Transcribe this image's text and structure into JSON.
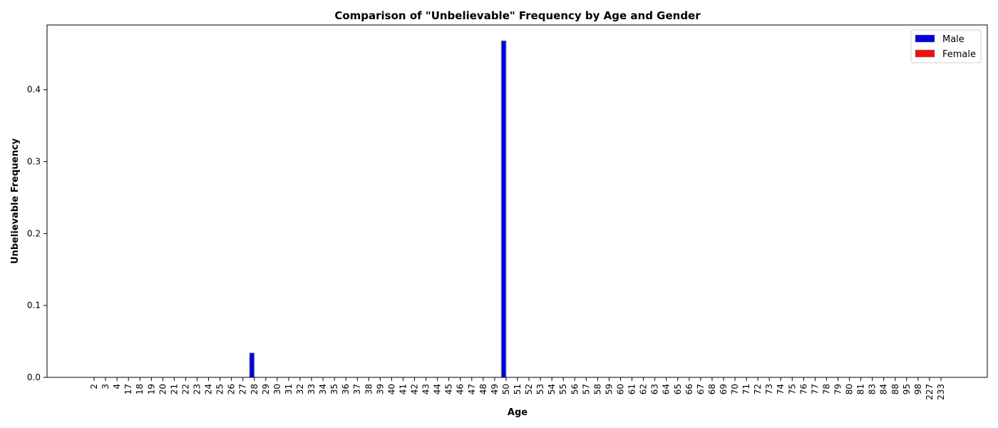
{
  "chart_data": {
    "type": "bar",
    "title": "Comparison of \"Unbelievable\" Frequency by Age and Gender",
    "xlabel": "Age",
    "ylabel": "Unbelievable Frequency",
    "ylim": [
      0,
      0.49
    ],
    "yticks": [
      "0.0",
      "0.1",
      "0.2",
      "0.3",
      "0.4"
    ],
    "grid": false,
    "legend_position": "top-right",
    "categories": [
      "2",
      "3",
      "4",
      "17",
      "18",
      "19",
      "20",
      "21",
      "22",
      "23",
      "24",
      "25",
      "26",
      "27",
      "28",
      "29",
      "30",
      "31",
      "32",
      "33",
      "34",
      "35",
      "36",
      "37",
      "38",
      "39",
      "40",
      "41",
      "42",
      "43",
      "44",
      "45",
      "46",
      "47",
      "48",
      "49",
      "50",
      "51",
      "52",
      "53",
      "54",
      "55",
      "56",
      "57",
      "58",
      "59",
      "60",
      "61",
      "62",
      "63",
      "64",
      "65",
      "66",
      "67",
      "68",
      "69",
      "70",
      "71",
      "72",
      "73",
      "74",
      "75",
      "76",
      "77",
      "78",
      "79",
      "80",
      "81",
      "83",
      "84",
      "88",
      "95",
      "98",
      "227",
      "233"
    ],
    "series": [
      {
        "name": "Male",
        "color": "#0000dd",
        "values": [
          0,
          0,
          0,
          0,
          0,
          0,
          0,
          0,
          0,
          0,
          0,
          0,
          0,
          0,
          0.034,
          0,
          0,
          0,
          0,
          0,
          0,
          0,
          0,
          0,
          0,
          0,
          0,
          0,
          0,
          0,
          0,
          0,
          0,
          0,
          0,
          0,
          0.468,
          0,
          0,
          0,
          0,
          0,
          0,
          0,
          0,
          0,
          0,
          0,
          0,
          0,
          0,
          0,
          0,
          0,
          0,
          0,
          0,
          0,
          0,
          0,
          0,
          0,
          0,
          0,
          0,
          0,
          0,
          0,
          0,
          0,
          0,
          0,
          0,
          0,
          0
        ]
      },
      {
        "name": "Female",
        "color": "#ee1111",
        "values": [
          0,
          0,
          0,
          0,
          0,
          0,
          0,
          0,
          0,
          0,
          0,
          0,
          0,
          0,
          0,
          0,
          0,
          0,
          0,
          0,
          0,
          0,
          0,
          0,
          0,
          0,
          0,
          0,
          0,
          0,
          0,
          0,
          0,
          0,
          0,
          0,
          0,
          0,
          0,
          0,
          0,
          0,
          0,
          0,
          0,
          0,
          0,
          0,
          0,
          0,
          0,
          0,
          0,
          0,
          0,
          0,
          0,
          0,
          0,
          0,
          0,
          0,
          0,
          0,
          0,
          0,
          0,
          0,
          0,
          0,
          0,
          0,
          0,
          0,
          0
        ]
      }
    ]
  }
}
